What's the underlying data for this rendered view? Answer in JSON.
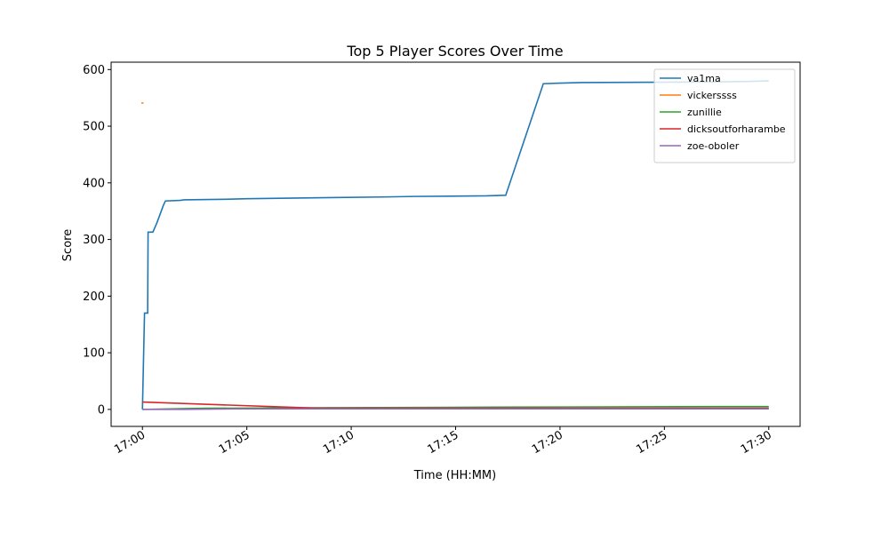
{
  "chart_data": {
    "type": "line",
    "title": "Top 5 Player Scores Over Time",
    "x_label": "Time (HH:MM)",
    "y_label": "Score",
    "xlim": [
      -1.5,
      31.5
    ],
    "ylim": [
      -30,
      613
    ],
    "xticks": [
      {
        "value": 0,
        "label": "17:00"
      },
      {
        "value": 5,
        "label": "17:05"
      },
      {
        "value": 10,
        "label": "17:10"
      },
      {
        "value": 15,
        "label": "17:15"
      },
      {
        "value": 20,
        "label": "17:20"
      },
      {
        "value": 25,
        "label": "17:25"
      },
      {
        "value": 30,
        "label": "17:30"
      }
    ],
    "yticks": [
      0,
      100,
      200,
      300,
      400,
      500,
      600
    ],
    "legend": "upper right",
    "series": [
      {
        "name": "va1ma",
        "color": "#1f77b4",
        "x": [
          0,
          0.1,
          0.25,
          0.27,
          0.5,
          0.7,
          1.0,
          1.1,
          1.8,
          2.0,
          4.0,
          5.0,
          7.0,
          9.0,
          11.5,
          13.0,
          16.5,
          17.4,
          19.2,
          20.0,
          21.0,
          27.0,
          29.0,
          30.0
        ],
        "values": [
          0,
          170,
          170,
          313,
          313,
          330,
          360,
          368,
          369,
          370,
          371,
          372,
          373,
          374,
          375,
          376,
          377,
          378,
          575,
          576,
          577,
          578,
          579,
          580
        ]
      },
      {
        "name": "vickerssss",
        "color": "#ff7f0e",
        "x": [
          -0.05,
          0.05
        ],
        "values": [
          541,
          541
        ]
      },
      {
        "name": "zunillie",
        "color": "#2ca02c",
        "x": [
          0,
          3,
          9,
          17,
          28,
          30
        ],
        "values": [
          0,
          2,
          3,
          4,
          5,
          5
        ]
      },
      {
        "name": "dicksoutforharambe",
        "color": "#d62728",
        "x": [
          0,
          8.5,
          30
        ],
        "values": [
          13,
          2,
          2
        ]
      },
      {
        "name": "zoe-oboler",
        "color": "#9467bd",
        "x": [
          0,
          2,
          4.5,
          30
        ],
        "values": [
          0,
          0,
          1,
          1
        ]
      }
    ]
  }
}
